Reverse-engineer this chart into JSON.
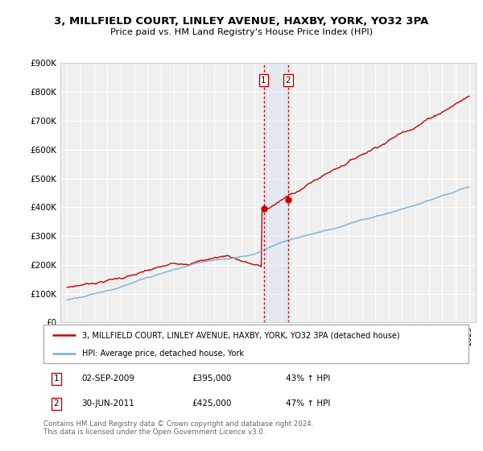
{
  "title": "3, MILLFIELD COURT, LINLEY AVENUE, HAXBY, YORK, YO32 3PA",
  "subtitle": "Price paid vs. HM Land Registry's House Price Index (HPI)",
  "ylim": [
    0,
    900000
  ],
  "yticks": [
    0,
    100000,
    200000,
    300000,
    400000,
    500000,
    600000,
    700000,
    800000,
    900000
  ],
  "ytick_labels": [
    "£0",
    "£100K",
    "£200K",
    "£300K",
    "£400K",
    "£500K",
    "£600K",
    "£700K",
    "£800K",
    "£900K"
  ],
  "red_color": "#cc0000",
  "blue_color": "#7aaed6",
  "background_color": "#ffffff",
  "plot_bg_color": "#efefef",
  "legend_label_red": "3, MILLFIELD COURT, LINLEY AVENUE, HAXBY, YORK, YO32 3PA (detached house)",
  "legend_label_blue": "HPI: Average price, detached house, York",
  "annotation1_label": "1",
  "annotation1_date": "02-SEP-2009",
  "annotation1_price": "£395,000",
  "annotation1_hpi": "43% ↑ HPI",
  "annotation2_label": "2",
  "annotation2_date": "30-JUN-2011",
  "annotation2_price": "£425,000",
  "annotation2_hpi": "47% ↑ HPI",
  "footer": "Contains HM Land Registry data © Crown copyright and database right 2024.\nThis data is licensed under the Open Government Licence v3.0.",
  "point1_x": 2009.67,
  "point1_y": 395000,
  "point2_x": 2011.5,
  "point2_y": 425000,
  "shade_x_start": 2009.67,
  "shade_x_end": 2011.5,
  "xlim_start": 1994.5,
  "xlim_end": 2025.5,
  "xtick_start": 1995,
  "xtick_end": 2025
}
